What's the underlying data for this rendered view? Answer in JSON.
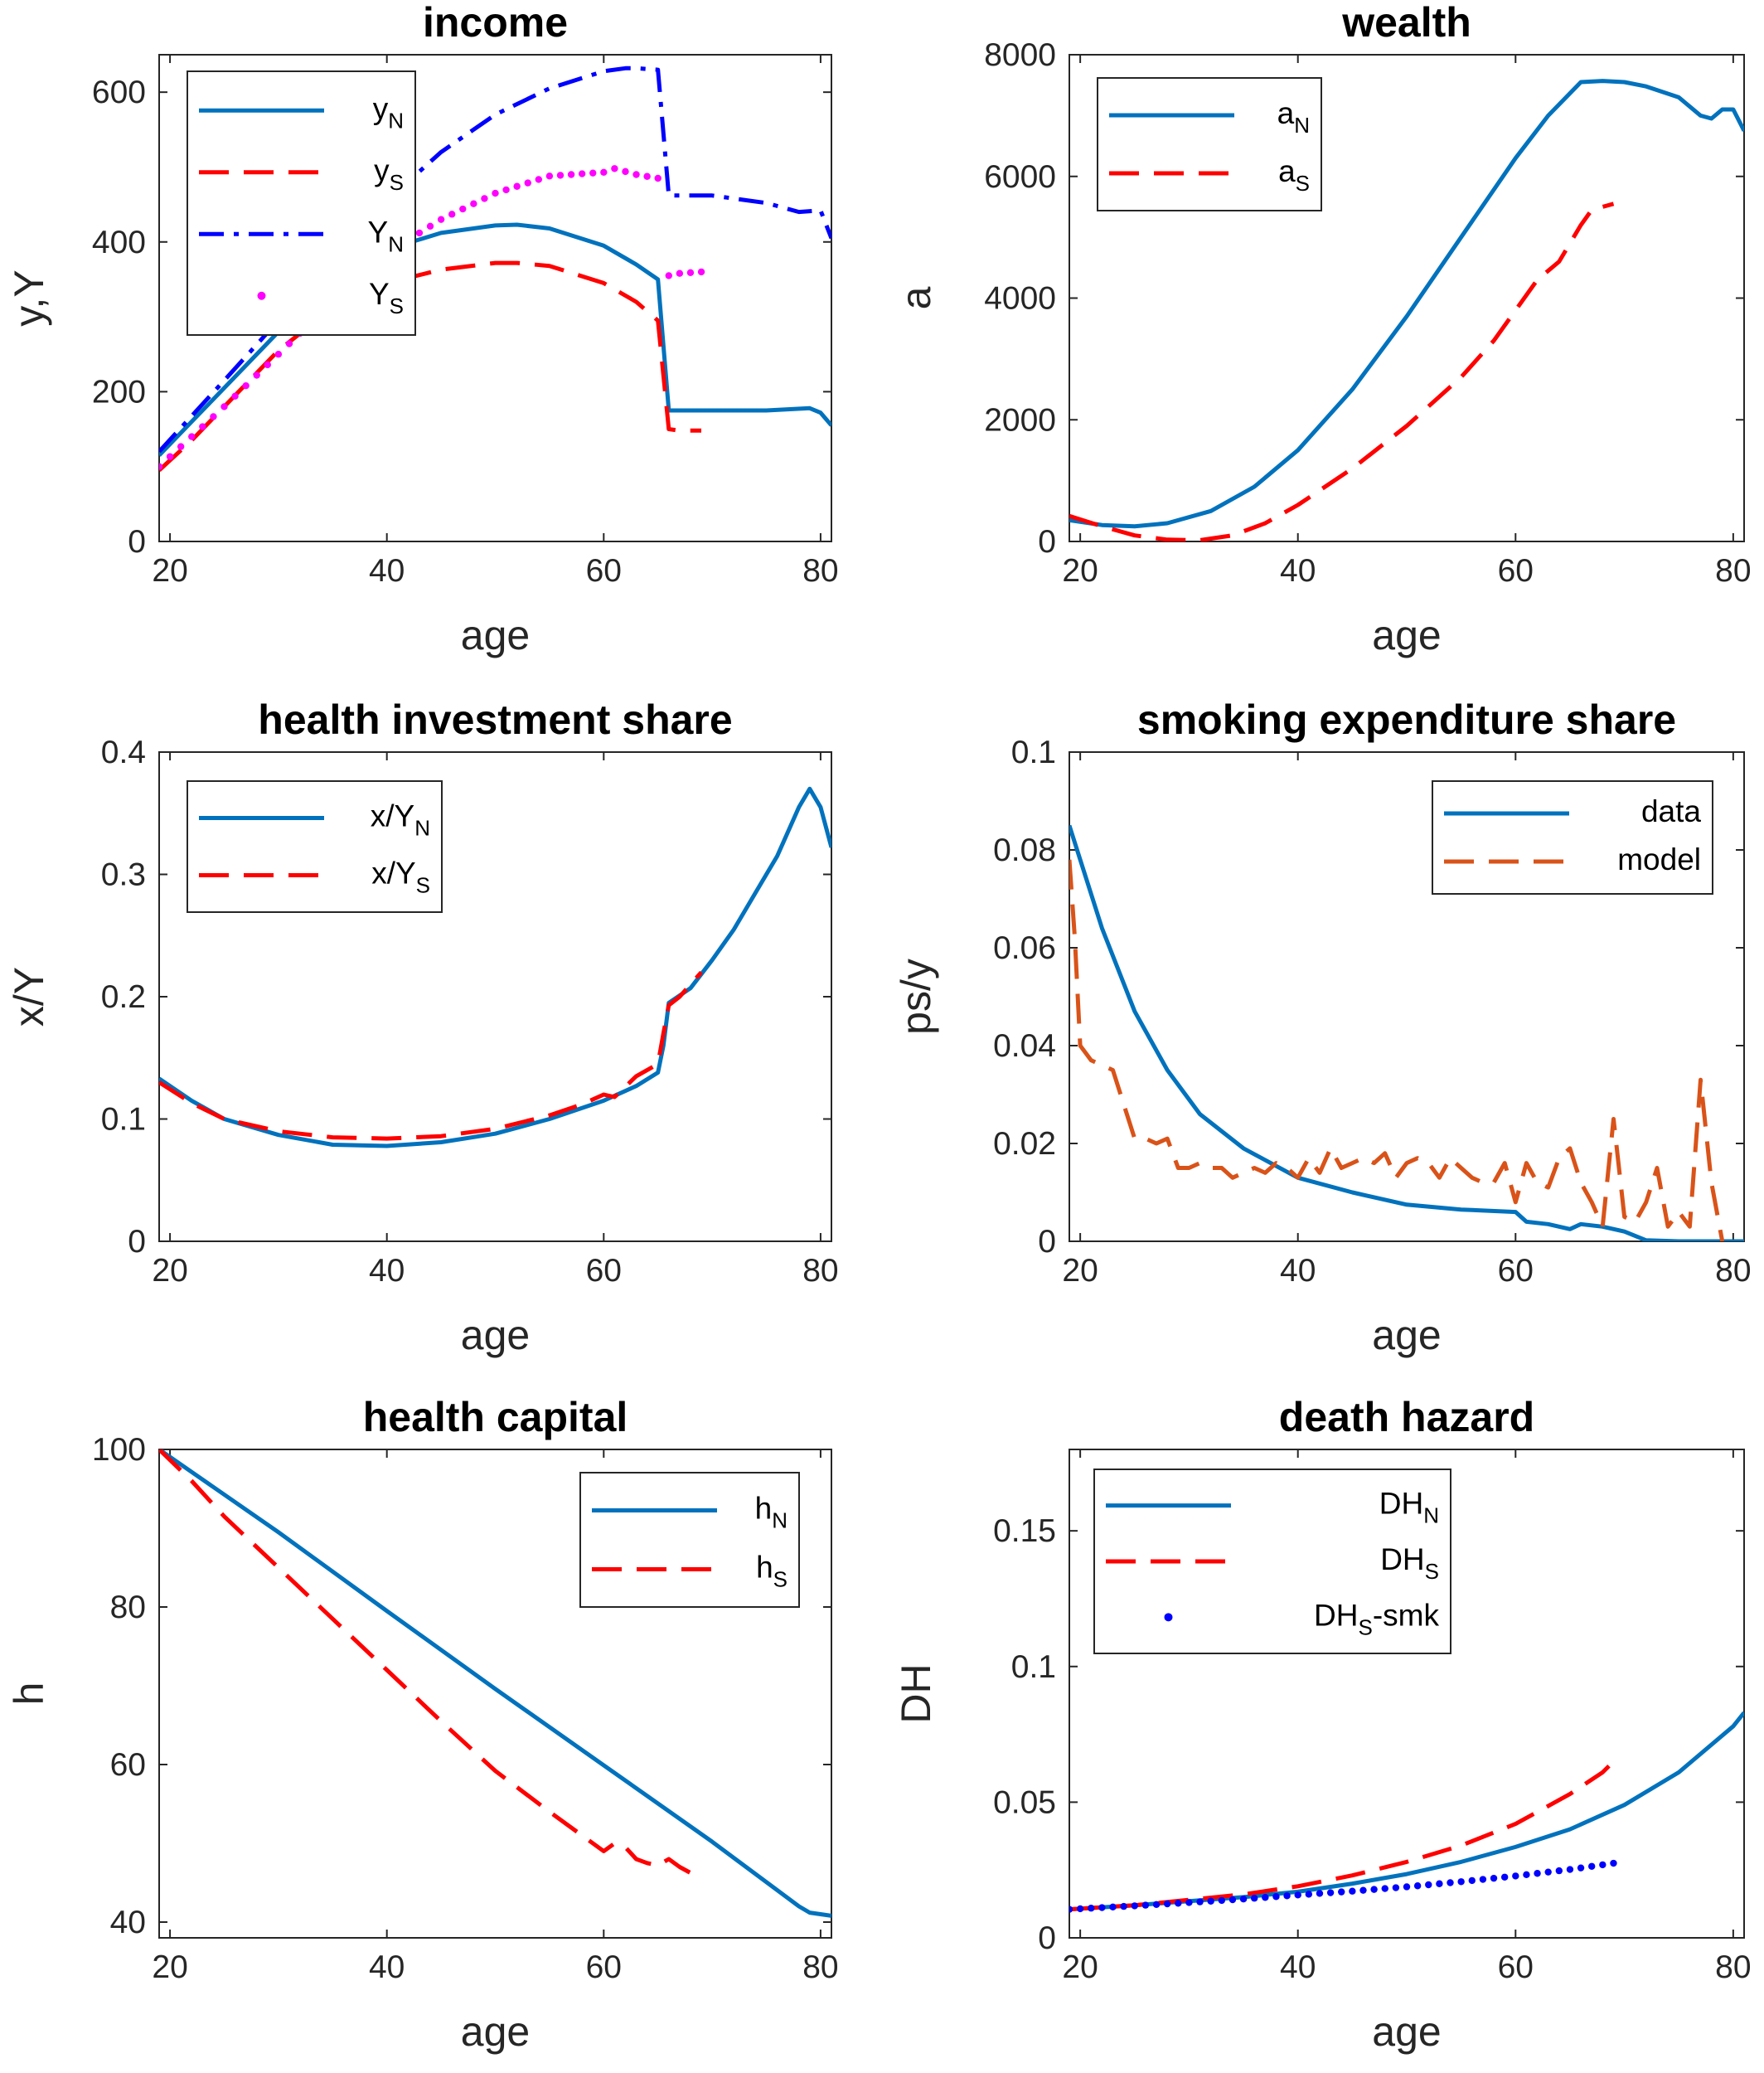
{
  "chart_data": [
    {
      "id": "income",
      "type": "line",
      "title": "income",
      "xlabel": "age",
      "ylabel": "y,Y",
      "xlim": [
        19,
        81
      ],
      "ylim": [
        0,
        650
      ],
      "xticks": [
        "20",
        "40",
        "60",
        "80"
      ],
      "xtick_values": [
        20,
        40,
        60,
        80
      ],
      "yticks": [
        "0",
        "200",
        "400",
        "600"
      ],
      "ytick_values": [
        0,
        200,
        400,
        600
      ],
      "legend": "top-left",
      "series": [
        {
          "name": "y",
          "sub": "N",
          "color": "#0072bd",
          "style": "solid",
          "x": [
            19,
            22,
            25,
            30,
            35,
            40,
            45,
            50,
            52,
            55,
            60,
            63,
            65,
            66,
            70,
            75,
            79,
            80,
            81
          ],
          "y": [
            115,
            160,
            205,
            280,
            345,
            390,
            412,
            422,
            423,
            418,
            395,
            370,
            350,
            175,
            175,
            175,
            178,
            172,
            155
          ]
        },
        {
          "name": "y",
          "sub": "S",
          "color": "#ff0000",
          "style": "dashed",
          "x": [
            19,
            22,
            25,
            30,
            35,
            40,
            45,
            50,
            52,
            55,
            60,
            63,
            65,
            66,
            67,
            69
          ],
          "y": [
            95,
            135,
            180,
            255,
            312,
            345,
            363,
            372,
            372,
            368,
            345,
            320,
            295,
            150,
            148,
            148
          ]
        },
        {
          "name": "Y",
          "sub": "N",
          "color": "#0000ff",
          "style": "dashdot",
          "x": [
            19,
            25,
            30,
            35,
            40,
            45,
            50,
            55,
            60,
            62,
            63,
            65,
            66,
            70,
            75,
            78,
            80,
            81
          ],
          "y": [
            120,
            215,
            295,
            380,
            455,
            520,
            570,
            605,
            628,
            632,
            632,
            630,
            462,
            462,
            452,
            440,
            442,
            405
          ]
        },
        {
          "name": "Y",
          "sub": "S",
          "color": "#ff00ff",
          "style": "dotted",
          "x": [
            19,
            25,
            30,
            35,
            40,
            45,
            50,
            55,
            60,
            61,
            63,
            65,
            66,
            67,
            69
          ],
          "y": [
            100,
            180,
            250,
            320,
            385,
            430,
            465,
            488,
            493,
            498,
            490,
            485,
            355,
            358,
            360
          ]
        }
      ]
    },
    {
      "id": "wealth",
      "type": "line",
      "title": "wealth",
      "xlabel": "age",
      "ylabel": "a",
      "xlim": [
        19,
        81
      ],
      "ylim": [
        0,
        8000
      ],
      "xticks": [
        "20",
        "40",
        "60",
        "80"
      ],
      "xtick_values": [
        20,
        40,
        60,
        80
      ],
      "yticks": [
        "0",
        "2000",
        "4000",
        "6000",
        "8000"
      ],
      "ytick_values": [
        0,
        2000,
        4000,
        6000,
        8000
      ],
      "legend": "top-left",
      "series": [
        {
          "name": "a",
          "sub": "N",
          "color": "#0072bd",
          "style": "solid",
          "x": [
            19,
            22,
            25,
            28,
            32,
            36,
            40,
            45,
            50,
            55,
            60,
            63,
            66,
            68,
            70,
            72,
            75,
            77,
            78,
            79,
            80,
            81
          ],
          "y": [
            350,
            270,
            250,
            300,
            500,
            900,
            1500,
            2500,
            3700,
            5000,
            6300,
            7000,
            7550,
            7570,
            7550,
            7480,
            7300,
            7000,
            6950,
            7100,
            7100,
            6750
          ]
        },
        {
          "name": "a",
          "sub": "S",
          "color": "#ff0000",
          "style": "dashed",
          "x": [
            19,
            22,
            25,
            28,
            31,
            34,
            37,
            40,
            45,
            50,
            55,
            58,
            60,
            62,
            64,
            66,
            67,
            69
          ],
          "y": [
            420,
            250,
            100,
            30,
            20,
            100,
            300,
            600,
            1200,
            1900,
            2700,
            3300,
            3800,
            4300,
            4600,
            5200,
            5450,
            5550
          ]
        }
      ]
    },
    {
      "id": "health-investment-share",
      "type": "line",
      "title": "health investment share",
      "xlabel": "age",
      "ylabel": "x/Y",
      "xlim": [
        19,
        81
      ],
      "ylim": [
        0,
        0.4
      ],
      "xticks": [
        "20",
        "40",
        "60",
        "80"
      ],
      "xtick_values": [
        20,
        40,
        60,
        80
      ],
      "yticks": [
        "0",
        "0.1",
        "0.2",
        "0.3",
        "0.4"
      ],
      "ytick_values": [
        0,
        0.1,
        0.2,
        0.3,
        0.4
      ],
      "legend": "top-left",
      "series": [
        {
          "name": "x/Y",
          "sub": "N",
          "color": "#0072bd",
          "style": "solid",
          "x": [
            19,
            22,
            25,
            30,
            35,
            40,
            45,
            50,
            55,
            60,
            63,
            65,
            65.5,
            66,
            68,
            70,
            72,
            74,
            76,
            78,
            79,
            80,
            81
          ],
          "y": [
            0.133,
            0.115,
            0.1,
            0.087,
            0.079,
            0.078,
            0.081,
            0.088,
            0.1,
            0.115,
            0.127,
            0.138,
            0.16,
            0.195,
            0.207,
            0.23,
            0.255,
            0.285,
            0.315,
            0.355,
            0.37,
            0.355,
            0.322
          ]
        },
        {
          "name": "x/Y",
          "sub": "S",
          "color": "#ff0000",
          "style": "dashed",
          "x": [
            19,
            22,
            25,
            30,
            35,
            40,
            45,
            50,
            55,
            58,
            60,
            61,
            63,
            65,
            65.5,
            66,
            67,
            69
          ],
          "y": [
            0.13,
            0.113,
            0.1,
            0.09,
            0.085,
            0.084,
            0.086,
            0.092,
            0.103,
            0.112,
            0.12,
            0.118,
            0.135,
            0.145,
            0.17,
            0.193,
            0.2,
            0.22
          ]
        }
      ]
    },
    {
      "id": "smoking-expenditure-share",
      "type": "line",
      "title": "smoking expenditure share",
      "xlabel": "age",
      "ylabel": "ps/y",
      "xlim": [
        19,
        81
      ],
      "ylim": [
        0,
        0.1
      ],
      "xticks": [
        "20",
        "40",
        "60",
        "80"
      ],
      "xtick_values": [
        20,
        40,
        60,
        80
      ],
      "yticks": [
        "0",
        "0.02",
        "0.04",
        "0.06",
        "0.08",
        "0.1"
      ],
      "ytick_values": [
        0,
        0.02,
        0.04,
        0.06,
        0.08,
        0.1
      ],
      "legend": "top-right",
      "series": [
        {
          "name": "data",
          "color": "#0072bd",
          "style": "solid",
          "x": [
            19,
            20,
            22,
            25,
            28,
            31,
            35,
            40,
            45,
            50,
            55,
            60,
            61,
            63,
            65,
            66,
            68,
            70,
            72,
            75,
            80,
            81
          ],
          "y": [
            0.085,
            0.078,
            0.064,
            0.047,
            0.035,
            0.026,
            0.019,
            0.013,
            0.01,
            0.0075,
            0.0065,
            0.006,
            0.004,
            0.0035,
            0.0025,
            0.0035,
            0.003,
            0.002,
            0.0002,
            0,
            0,
            0
          ]
        },
        {
          "name": "model",
          "color": "#d95319",
          "style": "dashed",
          "x": [
            19,
            19.5,
            20,
            21,
            22,
            23,
            24,
            25,
            26,
            27,
            28,
            29,
            30,
            31,
            32,
            33,
            34,
            35,
            36,
            37,
            38,
            39,
            40,
            41,
            42,
            43,
            44,
            45,
            46,
            47,
            48,
            49,
            50,
            51,
            52,
            53,
            54,
            55,
            56,
            57,
            58,
            59,
            60,
            61,
            62,
            63,
            64,
            65,
            66,
            67,
            68,
            69,
            70,
            71,
            72,
            73,
            74,
            75,
            76,
            77,
            78,
            79
          ],
          "y": [
            0.078,
            0.062,
            0.04,
            0.037,
            0.036,
            0.035,
            0.028,
            0.021,
            0.021,
            0.02,
            0.021,
            0.015,
            0.015,
            0.016,
            0.015,
            0.015,
            0.013,
            0.014,
            0.015,
            0.014,
            0.016,
            0.015,
            0.013,
            0.017,
            0.014,
            0.019,
            0.015,
            0.016,
            0.017,
            0.016,
            0.018,
            0.013,
            0.016,
            0.017,
            0.016,
            0.013,
            0.017,
            0.015,
            0.013,
            0.012,
            0.012,
            0.016,
            0.008,
            0.016,
            0.012,
            0.011,
            0.017,
            0.019,
            0.012,
            0.008,
            0.003,
            0.025,
            0.005,
            0.004,
            0.008,
            0.015,
            0.003,
            0.006,
            0.003,
            0.033,
            0.012,
            0
          ]
        }
      ]
    },
    {
      "id": "health-capital",
      "type": "line",
      "title": "health capital",
      "xlabel": "age",
      "ylabel": "h",
      "xlim": [
        19,
        81
      ],
      "ylim": [
        38,
        100
      ],
      "xticks": [
        "20",
        "40",
        "60",
        "80"
      ],
      "xtick_values": [
        20,
        40,
        60,
        80
      ],
      "yticks": [
        "40",
        "60",
        "80",
        "100"
      ],
      "ytick_values": [
        40,
        60,
        80,
        100
      ],
      "legend": "top-right",
      "series": [
        {
          "name": "h",
          "sub": "N",
          "color": "#0072bd",
          "style": "solid",
          "x": [
            19,
            30,
            40,
            50,
            60,
            70,
            78,
            79,
            80,
            81
          ],
          "y": [
            100,
            89.5,
            79.5,
            69.6,
            59.9,
            50.2,
            42,
            41.2,
            41,
            40.8
          ]
        },
        {
          "name": "h",
          "sub": "S",
          "color": "#ff0000",
          "style": "dashed",
          "x": [
            19,
            22,
            25,
            30,
            35,
            40,
            45,
            50,
            55,
            58,
            60,
            61,
            62,
            63,
            64,
            65,
            66,
            67,
            69
          ],
          "y": [
            100,
            96,
            91.5,
            85,
            78.5,
            72,
            65.5,
            59.2,
            54,
            51,
            49,
            50,
            49.5,
            48,
            47.5,
            47.2,
            48,
            47,
            45.5
          ]
        }
      ]
    },
    {
      "id": "death-hazard",
      "type": "line",
      "title": "death hazard",
      "xlabel": "age",
      "ylabel": "DH",
      "xlim": [
        19,
        81
      ],
      "ylim": [
        0,
        0.18
      ],
      "xticks": [
        "20",
        "40",
        "60",
        "80"
      ],
      "xtick_values": [
        20,
        40,
        60,
        80
      ],
      "yticks": [
        "0",
        "0.05",
        "0.1",
        "0.15"
      ],
      "ytick_values": [
        0,
        0.05,
        0.1,
        0.15
      ],
      "legend": "top-left",
      "series": [
        {
          "name": "DH",
          "sub": "N",
          "color": "#0072bd",
          "style": "solid",
          "x": [
            19,
            25,
            30,
            35,
            40,
            45,
            50,
            55,
            60,
            65,
            70,
            75,
            80,
            81
          ],
          "y": [
            0.0105,
            0.012,
            0.0135,
            0.015,
            0.017,
            0.02,
            0.0235,
            0.028,
            0.0335,
            0.04,
            0.049,
            0.061,
            0.078,
            0.083
          ]
        },
        {
          "name": "DH",
          "sub": "S",
          "color": "#ff0000",
          "style": "dashed",
          "x": [
            19,
            25,
            30,
            35,
            40,
            45,
            50,
            55,
            60,
            65,
            68,
            69
          ],
          "y": [
            0.0105,
            0.012,
            0.014,
            0.016,
            0.019,
            0.023,
            0.028,
            0.034,
            0.042,
            0.053,
            0.061,
            0.065
          ]
        },
        {
          "name": "DH",
          "sub": "S",
          "suffix": "-smk",
          "color": "#0000ff",
          "style": "dotted",
          "x": [
            19,
            25,
            30,
            35,
            40,
            45,
            50,
            55,
            60,
            65,
            69
          ],
          "y": [
            0.0105,
            0.0118,
            0.013,
            0.0143,
            0.0158,
            0.0172,
            0.0188,
            0.0207,
            0.0228,
            0.0252,
            0.0275
          ]
        }
      ]
    }
  ]
}
